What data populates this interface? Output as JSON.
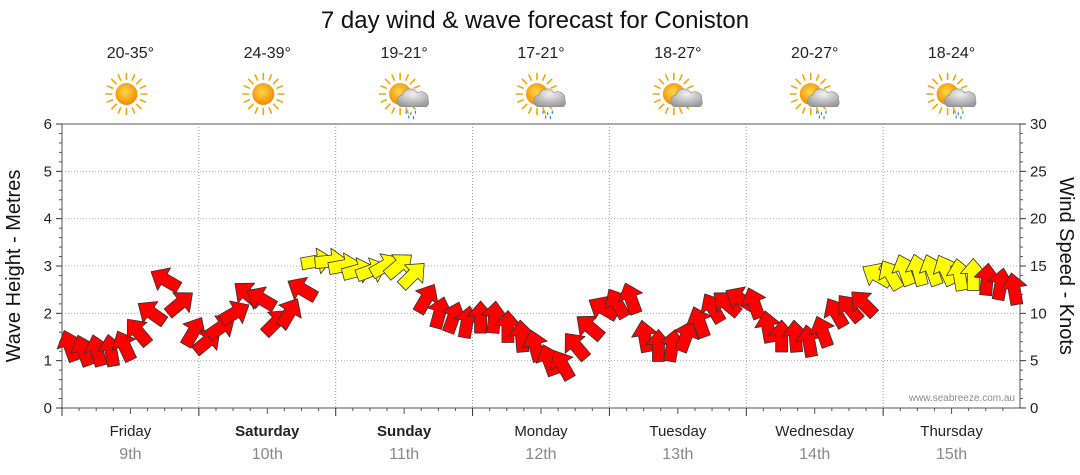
{
  "chart_data": {
    "type": "line",
    "title": "7 day wind & wave forecast for Coniston",
    "ylabel_left": "Wave Height - Metres",
    "ylabel_right": "Wind Speed - Knots",
    "ylim_left": [
      0,
      6
    ],
    "ylim_right": [
      0,
      30
    ],
    "yticks_left": [
      "0",
      "1",
      "2",
      "3",
      "4",
      "5",
      "6"
    ],
    "yticks_right": [
      "0",
      "5",
      "10",
      "15",
      "20",
      "25",
      "30"
    ],
    "days": [
      {
        "name": "Friday",
        "date": "9th",
        "bold": false,
        "temp": "20-35°",
        "icon": "sunny-icon"
      },
      {
        "name": "Saturday",
        "date": "10th",
        "bold": true,
        "temp": "24-39°",
        "icon": "sunny-icon"
      },
      {
        "name": "Sunday",
        "date": "11th",
        "bold": true,
        "temp": "19-21°",
        "icon": "sun-rain-icon"
      },
      {
        "name": "Monday",
        "date": "12th",
        "bold": false,
        "temp": "17-21°",
        "icon": "sun-shower-icon"
      },
      {
        "name": "Tuesday",
        "date": "13th",
        "bold": false,
        "temp": "18-27°",
        "icon": "partly-cloudy-icon"
      },
      {
        "name": "Wednesday",
        "date": "14th",
        "bold": false,
        "temp": "20-27°",
        "icon": "sun-rain-icon"
      },
      {
        "name": "Thursday",
        "date": "15th",
        "bold": false,
        "temp": "18-24°",
        "icon": "sun-rain-icon"
      }
    ],
    "watermark": "www.seabreeze.com.au",
    "wind_series": {
      "name": "Wind Speed",
      "units": "knots",
      "x_day": [
        0.0,
        0.1,
        0.2,
        0.3,
        0.4,
        0.5,
        0.6,
        0.7,
        0.8,
        0.9,
        1.0,
        1.1,
        1.2,
        1.3,
        1.4,
        1.5,
        1.6,
        1.7,
        1.8,
        1.9,
        2.0,
        2.1,
        2.2,
        2.3,
        2.4,
        2.5,
        2.6,
        2.7,
        2.8,
        2.9,
        3.0,
        3.1,
        3.2,
        3.3,
        3.4,
        3.5,
        3.6,
        3.7,
        3.8,
        3.9,
        4.0,
        4.1,
        4.2,
        4.3,
        4.4,
        4.5,
        4.6,
        4.7,
        4.8,
        4.9,
        5.0,
        5.1,
        5.2,
        5.3,
        5.4,
        5.5,
        5.6,
        5.7,
        5.8,
        5.9,
        6.0,
        6.1,
        6.2,
        6.3,
        6.4,
        6.5,
        6.6,
        6.7,
        6.8,
        6.9
      ],
      "speed": [
        6.5,
        6.0,
        6.0,
        6.0,
        6.5,
        8.0,
        10.0,
        13.5,
        11.0,
        8.0,
        7.0,
        8.5,
        10.0,
        12.0,
        11.5,
        9.0,
        10.0,
        12.5,
        15.5,
        15.5,
        15.0,
        14.5,
        14.5,
        15.0,
        15.0,
        14.0,
        11.5,
        10.0,
        9.5,
        9.0,
        9.5,
        9.5,
        8.5,
        7.5,
        6.5,
        5.0,
        4.5,
        6.5,
        8.5,
        10.5,
        11.0,
        11.5,
        7.5,
        6.5,
        6.5,
        7.5,
        9.0,
        10.5,
        11.0,
        11.5,
        11.0,
        8.5,
        7.5,
        7.5,
        7.0,
        8.0,
        10.0,
        10.5,
        11.0,
        14.0,
        14.0,
        14.5,
        14.5,
        14.5,
        14.5,
        14.0,
        14.0,
        13.5,
        13.0,
        12.5
      ],
      "direction_deg": [
        250,
        250,
        255,
        260,
        245,
        230,
        215,
        210,
        320,
        300,
        320,
        325,
        330,
        220,
        210,
        315,
        300,
        210,
        350,
        355,
        350,
        345,
        340,
        330,
        320,
        315,
        300,
        285,
        290,
        280,
        270,
        275,
        270,
        265,
        255,
        250,
        240,
        230,
        220,
        210,
        240,
        250,
        260,
        270,
        280,
        290,
        250,
        240,
        220,
        210,
        250,
        260,
        270,
        265,
        260,
        250,
        240,
        230,
        225,
        210,
        240,
        250,
        255,
        250,
        245,
        260,
        270,
        275,
        280,
        260
      ],
      "strong_threshold_knots": 14,
      "colors": {
        "strong": "#ffff00",
        "normal": "#ff0000",
        "outline": "#333333"
      }
    }
  }
}
